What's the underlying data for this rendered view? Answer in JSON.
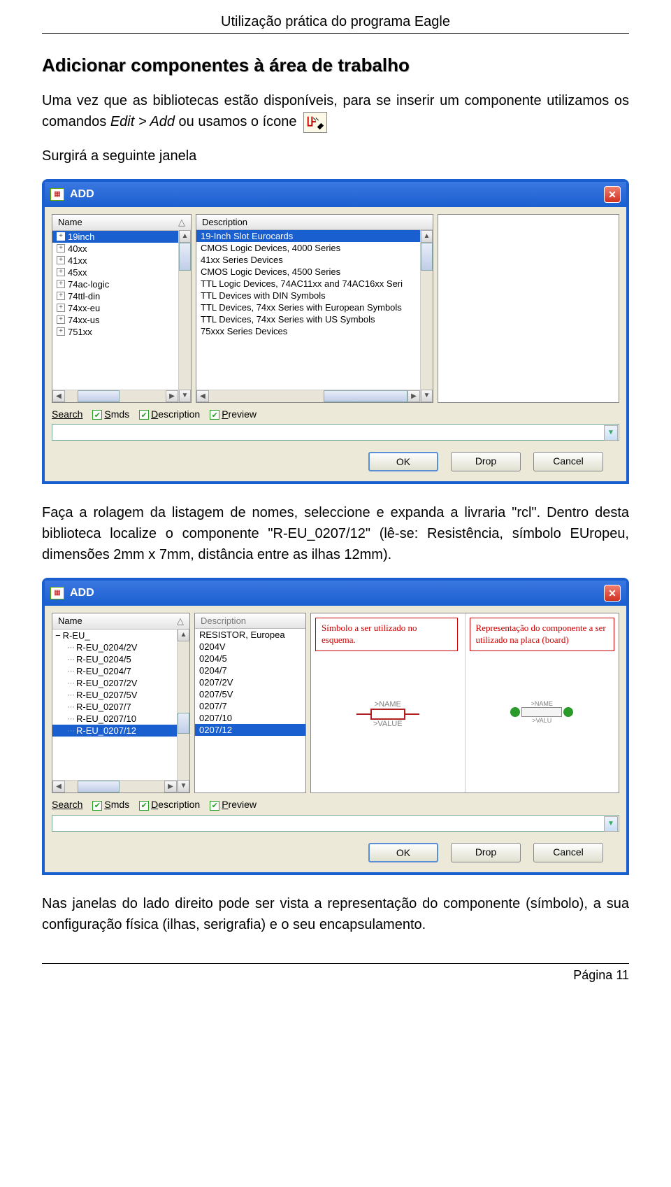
{
  "doc": {
    "header": "Utilização prática do programa Eagle",
    "heading": "Adicionar componentes à área de trabalho",
    "p1a": "Uma vez que as bibliotecas estão disponíveis, para se inserir um componente utilizamos os comandos ",
    "p1b": "Edit > Add",
    "p1c": " ou usamos o ícone",
    "p2": "Surgirá a seguinte janela",
    "p3": "Faça a rolagem da listagem de nomes, seleccione e expanda a livraria \"rcl\". Dentro desta biblioteca localize o componente \"R-EU_0207/12\" (lê-se: Resistência, símbolo EUropeu, dimensões 2mm x 7mm, distância entre as ilhas 12mm).",
    "p4": "Nas janelas do lado direito pode ser vista a representação do componente (símbolo), a sua configuração física (ilhas, serigrafia) e o seu encapsulamento.",
    "footer": "Página 11"
  },
  "win1": {
    "title": "ADD",
    "name_col": "Name",
    "desc_col": "Description",
    "rows": [
      {
        "name": "19inch",
        "desc": "19-Inch Slot Eurocards",
        "hl": true
      },
      {
        "name": "40xx",
        "desc": "CMOS Logic Devices, 4000 Series"
      },
      {
        "name": "41xx",
        "desc": "41xx Series Devices"
      },
      {
        "name": "45xx",
        "desc": "CMOS Logic Devices, 4500 Series"
      },
      {
        "name": "74ac-logic",
        "desc": "TTL Logic Devices, 74AC11xx and 74AC16xx Seri"
      },
      {
        "name": "74ttl-din",
        "desc": "TTL Devices with DIN Symbols"
      },
      {
        "name": "74xx-eu",
        "desc": "TTL Devices, 74xx Series with European Symbols"
      },
      {
        "name": "74xx-us",
        "desc": "TTL Devices, 74xx Series with US Symbols"
      },
      {
        "name": "751xx",
        "desc": "75xxx Series Devices"
      }
    ],
    "search": "Search",
    "smds": "Smds",
    "description": "Description",
    "preview": "Preview",
    "ok": "OK",
    "drop": "Drop",
    "cancel": "Cancel"
  },
  "win2": {
    "title": "ADD",
    "name_col": "Name",
    "desc_col": "Description",
    "parent": "R-EU_",
    "parent_desc": "RESISTOR, Europea",
    "rows": [
      {
        "name": "R-EU_0204/2V",
        "desc": "0204V"
      },
      {
        "name": "R-EU_0204/5",
        "desc": "0204/5"
      },
      {
        "name": "R-EU_0204/7",
        "desc": "0204/7"
      },
      {
        "name": "R-EU_0207/2V",
        "desc": "0207/2V"
      },
      {
        "name": "R-EU_0207/5V",
        "desc": "0207/5V"
      },
      {
        "name": "R-EU_0207/7",
        "desc": "0207/7"
      },
      {
        "name": "R-EU_0207/10",
        "desc": "0207/10"
      },
      {
        "name": "R-EU_0207/12",
        "desc": "0207/12",
        "hl": true
      }
    ],
    "callout1": "Símbolo a ser utilizado no esquema.",
    "callout2": "Representação do componente a ser utilizado na placa (board)",
    "sym_name": ">NAME",
    "sym_value": ">VALUE",
    "fp_name": ">NAME",
    "fp_value": ">VALU",
    "search": "Search",
    "smds": "Smds",
    "description": "Description",
    "preview": "Preview",
    "ok": "OK",
    "drop": "Drop",
    "cancel": "Cancel"
  },
  "colors": {
    "titlebar": "#1a5fd0",
    "panel_bg": "#ece9d8",
    "highlight": "#1a5fd0",
    "callout_border": "#c00000"
  }
}
